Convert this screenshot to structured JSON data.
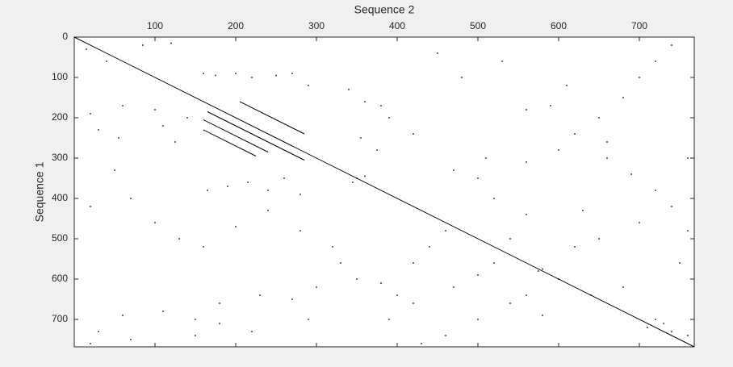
{
  "chart_data": {
    "type": "scatter",
    "x_label": "Sequence 2",
    "y_label": "Sequence 1",
    "x_axis_location": "top",
    "y_direction": "reverse",
    "xlim": [
      0,
      768
    ],
    "ylim": [
      0,
      768
    ],
    "xticks": [
      100,
      200,
      300,
      400,
      500,
      600,
      700
    ],
    "yticks": [
      0,
      100,
      200,
      300,
      400,
      500,
      600,
      700
    ],
    "series": [
      {
        "type": "line",
        "color": "#000000",
        "x": [
          0,
          768,
          null,
          160,
          270,
          null,
          165,
          285,
          null,
          160,
          240,
          null,
          160,
          225,
          null,
          205,
          285
        ],
        "y": [
          0,
          768,
          null,
          160,
          270,
          null,
          185,
          305,
          null,
          205,
          285,
          null,
          230,
          295,
          null,
          160,
          240
        ]
      },
      {
        "type": "scatter",
        "color": "#000000",
        "x": [
          15,
          40,
          85,
          120,
          160,
          175,
          200,
          220,
          250,
          270,
          290,
          340,
          360,
          380,
          390,
          420,
          355,
          375,
          20,
          30,
          55,
          60,
          100,
          110,
          125,
          140,
          165,
          190,
          215,
          240,
          260,
          280,
          50,
          70,
          20,
          100,
          130,
          160,
          200,
          240,
          280,
          320,
          330,
          350,
          380,
          400,
          420,
          440,
          460,
          300,
          270,
          230,
          180,
          150,
          110,
          60,
          30,
          20,
          70,
          150,
          180,
          220,
          290,
          390,
          420,
          470,
          500,
          520,
          540,
          560,
          520,
          500,
          470,
          510,
          560,
          600,
          620,
          650,
          680,
          700,
          720,
          740,
          610,
          590,
          560,
          530,
          480,
          450,
          660,
          690,
          720,
          740,
          700,
          650,
          620,
          600,
          640,
          680,
          720,
          740,
          760,
          710,
          730,
          580,
          540,
          500,
          460,
          430,
          750,
          760,
          760,
          630,
          660,
          560,
          350,
          360,
          345,
          575,
          580
        ],
        "y": [
          30,
          60,
          20,
          15,
          90,
          95,
          90,
          100,
          95,
          90,
          120,
          130,
          160,
          170,
          200,
          240,
          250,
          280,
          190,
          230,
          250,
          170,
          180,
          220,
          260,
          200,
          380,
          370,
          360,
          380,
          350,
          390,
          330,
          400,
          420,
          460,
          500,
          520,
          470,
          430,
          480,
          520,
          560,
          600,
          610,
          640,
          560,
          520,
          480,
          620,
          650,
          640,
          660,
          700,
          680,
          690,
          730,
          760,
          750,
          740,
          710,
          730,
          700,
          700,
          660,
          620,
          590,
          560,
          500,
          440,
          400,
          350,
          330,
          300,
          310,
          280,
          240,
          200,
          150,
          100,
          60,
          20,
          120,
          170,
          180,
          60,
          100,
          40,
          300,
          340,
          380,
          420,
          460,
          500,
          520,
          600,
          640,
          620,
          700,
          730,
          740,
          720,
          710,
          690,
          660,
          700,
          740,
          760,
          560,
          480,
          300,
          430,
          260,
          640,
          350,
          345,
          360,
          580,
          575
        ]
      }
    ]
  }
}
